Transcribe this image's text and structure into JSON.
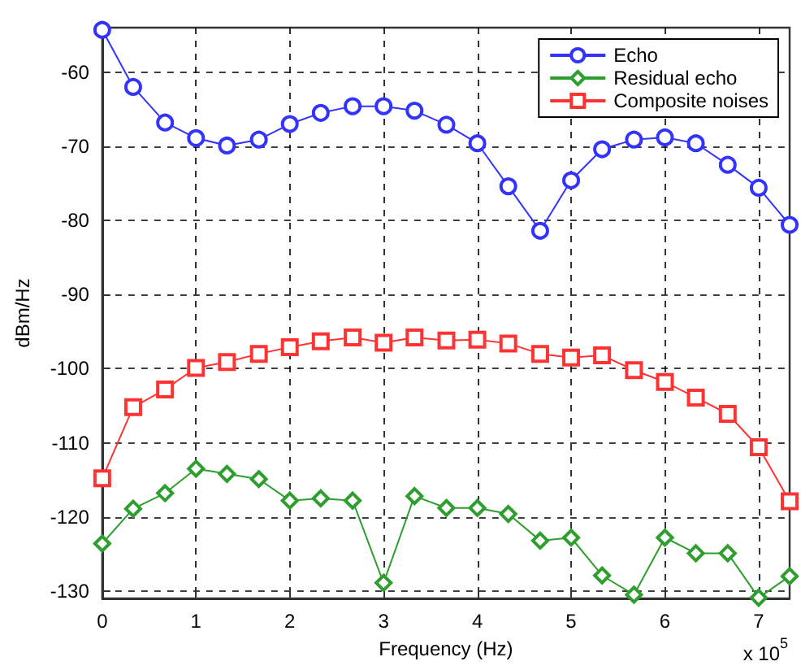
{
  "chart_data": {
    "type": "line",
    "xlabel": "Frequency (Hz)",
    "ylabel": "dBm/Hz",
    "x": [
      0,
      0.33,
      0.67,
      1,
      1.33,
      1.67,
      2,
      2.33,
      2.67,
      3,
      3.33,
      3.67,
      4,
      4.33,
      4.67,
      5,
      5.33,
      5.67,
      6,
      6.33,
      6.67,
      7,
      7.33
    ],
    "series": [
      {
        "name": "Echo",
        "color": "#3333ff",
        "marker": "circle",
        "values": [
          -54.3,
          -62.0,
          -66.8,
          -68.9,
          -69.9,
          -69.1,
          -67.0,
          -65.5,
          -64.6,
          -64.6,
          -65.2,
          -67.1,
          -69.6,
          -75.4,
          -81.4,
          -74.6,
          -70.4,
          -69.1,
          -68.8,
          -69.6,
          -72.5,
          -75.6,
          -80.6
        ]
      },
      {
        "name": "Residual echo",
        "color": "#2e9e2e",
        "marker": "diamond",
        "values": [
          -123.6,
          -118.9,
          -116.8,
          -113.5,
          -114.2,
          -114.9,
          -117.8,
          -117.5,
          -117.8,
          -128.9,
          -117.2,
          -118.8,
          -118.8,
          -119.6,
          -123.2,
          -122.8,
          -127.9,
          -130.5,
          -122.8,
          -124.9,
          -124.9,
          -130.9,
          -128.0
        ]
      },
      {
        "name": "Composite noises",
        "color": "#ff3333",
        "marker": "square",
        "values": [
          -114.8,
          -105.2,
          -102.8,
          -99.9,
          -99.1,
          -98.0,
          -97.1,
          -96.3,
          -95.8,
          -96.5,
          -95.8,
          -96.2,
          -96.1,
          -96.6,
          -98.0,
          -98.5,
          -98.2,
          -100.2,
          -101.8,
          -103.9,
          -106.1,
          -110.6,
          -117.9
        ]
      }
    ],
    "xlim": [
      0,
      7.33
    ],
    "xticks": [
      0,
      1,
      2,
      3,
      4,
      5,
      6,
      7
    ],
    "ylim": [
      -131,
      -54
    ],
    "yticks": [
      -130,
      -120,
      -110,
      -100,
      -90,
      -80,
      -70,
      -60
    ],
    "grid": true,
    "legend": "top right",
    "line_style": "solid",
    "annotations": [
      "x 10$^{5}$"
    ]
  }
}
